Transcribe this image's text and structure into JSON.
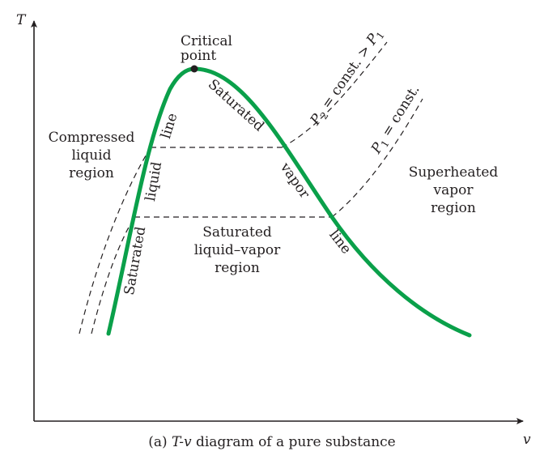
{
  "axes": {
    "y_label": "T",
    "x_label": "v"
  },
  "critical_point": {
    "line1": "Critical",
    "line2": "point"
  },
  "regions": {
    "compressed": [
      "Compressed",
      "liquid",
      "region"
    ],
    "superheated": [
      "Superheated",
      "vapor",
      "region"
    ],
    "mixture": [
      "Saturated",
      "liquid–vapor",
      "region"
    ]
  },
  "curve_labels": {
    "sat_liquid": [
      "Saturated",
      "liquid",
      "line"
    ],
    "sat_vapor": [
      "Saturated",
      "vapor",
      "line"
    ]
  },
  "isobars": {
    "p2": {
      "p": "P",
      "sub": "2",
      "rest": " = const. > ",
      "p_b": "P",
      "sub_b": "1"
    },
    "p1": {
      "p": "P",
      "sub": "1",
      "rest": " = const."
    }
  },
  "caption": {
    "prefix": "(a) ",
    "title_ital": "T-v",
    "title_rest": " diagram of a pure substance"
  },
  "colors": {
    "saturation_dome": "#0aa04a",
    "ink": "#231f20"
  }
}
